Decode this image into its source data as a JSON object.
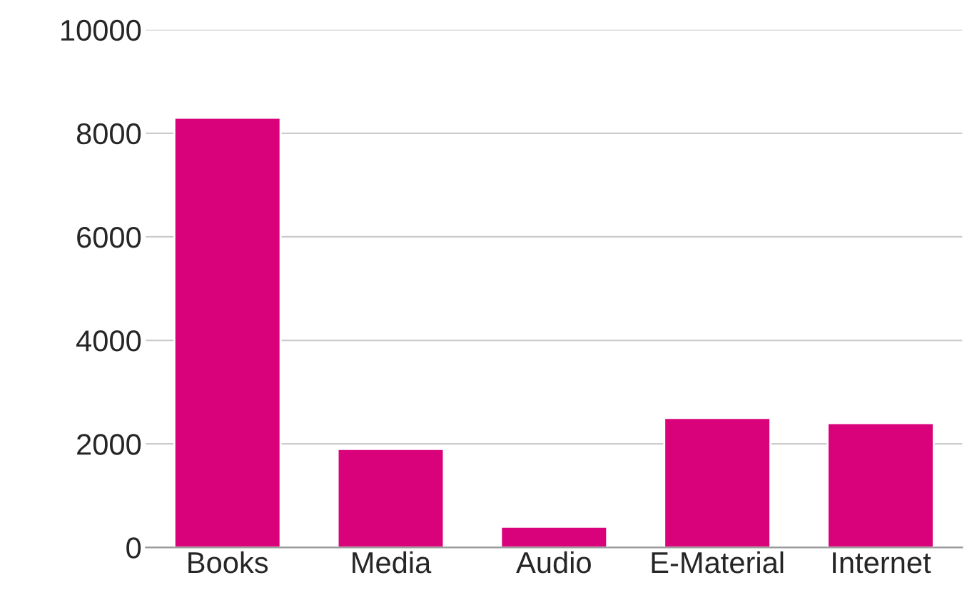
{
  "chart_data": {
    "type": "bar",
    "categories": [
      "Books",
      "Media",
      "Audio",
      "E-Material",
      "Internet"
    ],
    "values": [
      8300,
      1900,
      400,
      2500,
      2400
    ],
    "color": "#d9027a",
    "ylim": [
      0,
      10000
    ],
    "yticks": [
      0,
      2000,
      4000,
      6000,
      8000,
      10000
    ],
    "grid": "y"
  }
}
